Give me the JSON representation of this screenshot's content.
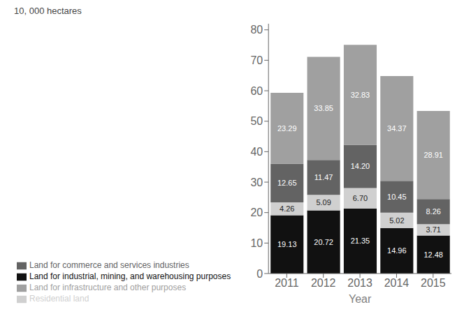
{
  "chart_data": {
    "type": "bar",
    "stacked": true,
    "data_labels": true,
    "xlabel": "Year",
    "ylabel": "10, 000 hectares",
    "categories": [
      "2011",
      "2012",
      "2013",
      "2014",
      "2015"
    ],
    "series": [
      {
        "name": "Land for industrial, mining, and warehousing purposes",
        "color": "#111111",
        "values": [
          19.13,
          20.72,
          21.35,
          14.96,
          12.48
        ],
        "value_labels": [
          "19.13",
          "20.72",
          "21.35",
          "14.96",
          "12.48"
        ]
      },
      {
        "name": "Residential land",
        "color": "#d0d0d0",
        "values": [
          4.26,
          5.09,
          6.7,
          5.02,
          3.71
        ],
        "value_labels": [
          "4.26",
          "5.09",
          "6.70",
          "5.02",
          "3.71"
        ]
      },
      {
        "name": "Land for commerce and services industries",
        "color": "#636363",
        "values": [
          12.65,
          11.47,
          14.2,
          10.45,
          8.26
        ],
        "value_labels": [
          "12.65",
          "11.47",
          "14.20",
          "10.45",
          "8.26"
        ]
      },
      {
        "name": "Land for infrastructure and other purposes",
        "color": "#a0a0a0",
        "values": [
          23.29,
          33.85,
          32.83,
          34.37,
          28.91
        ],
        "value_labels": [
          "23.29",
          "33.85",
          "32.83",
          "34.37",
          "28.91"
        ]
      }
    ],
    "ylim": [
      0,
      82
    ],
    "yticks": [
      0,
      10,
      20,
      30,
      40,
      50,
      60,
      70,
      80
    ],
    "grid": false,
    "legend": "bottom"
  }
}
